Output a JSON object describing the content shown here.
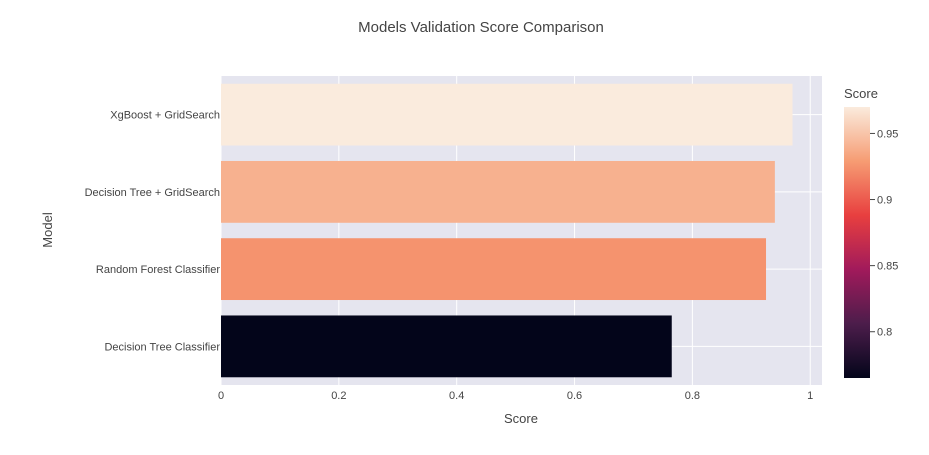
{
  "chart_data": {
    "type": "bar",
    "orientation": "horizontal",
    "title": "Models Validation Score Comparison",
    "xlabel": "Score",
    "ylabel": "Model",
    "xlim": [
      0,
      1.02
    ],
    "xticks": [
      "0",
      "0.2",
      "0.4",
      "0.6",
      "0.8",
      "1"
    ],
    "categories": [
      "XgBoost + GridSearch",
      "Decision Tree + GridSearch",
      "Random Forest Classifier",
      "Decision Tree Classifier"
    ],
    "values": [
      0.97,
      0.94,
      0.925,
      0.765
    ],
    "grid": true,
    "colorbar": {
      "title": "Score",
      "range": [
        0.765,
        0.97
      ],
      "ticks": [
        "0.8",
        "0.85",
        "0.9",
        "0.95"
      ],
      "colorscale": [
        "#03051a",
        "#4c1d4b",
        "#a11a5b",
        "#e83f3f",
        "#f69c73",
        "#faebdd"
      ]
    }
  }
}
